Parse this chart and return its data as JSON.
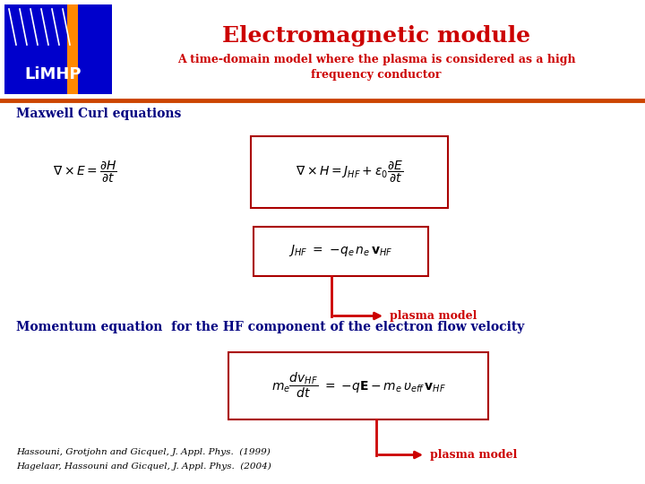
{
  "title": "Electromagnetic module",
  "subtitle": "A time-domain model where the plasma is considered as a high\nfrequency conductor",
  "title_color": "#CC0000",
  "subtitle_color": "#CC0000",
  "header_line_color": "#CC0000",
  "section1_label": "Maxwell Curl equations",
  "section1_color": "#000080",
  "plasma_label1": "plasma model",
  "section2_label": "Momentum equation  for the HF component of the electron flow velocity",
  "section2_color": "#000080",
  "plasma_label2": "plasma model",
  "ref1": "Hassouni, Grotjohn and Gicquel, J. Appl. Phys.  (1999)",
  "ref2": "Hagelaar, Hassouni and Gicquel, J. Appl. Phys.  (2004)",
  "bg_color": "#FFFFFF",
  "box_color": "#AA0000",
  "arrow_color": "#CC0000",
  "plasma_text_color": "#CC0000",
  "ref_color": "#000000",
  "logo_bg": "#0000CC",
  "logo_text_color": "#FFFFFF",
  "orange_bar_color": "#FF8800",
  "line_color": "#CC4400",
  "fig_width": 7.2,
  "fig_height": 5.4,
  "dpi": 100
}
